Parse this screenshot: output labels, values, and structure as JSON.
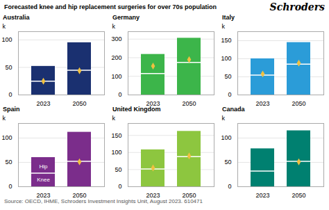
{
  "title": "Forecasted knee and hip replacement surgeries for over 70s population",
  "logo": "Schroders",
  "source": "Source: OECD, IHME, Schroders Investment Insights Unit, August 2023. 610471",
  "chart_data": [
    {
      "type": "bar",
      "title": "Australia",
      "ylabel": "k",
      "categories": [
        "2023",
        "2050"
      ],
      "series": [
        {
          "type": "bar",
          "color": "#1a3070",
          "values": [
            52,
            95
          ]
        },
        {
          "type": "divider",
          "color": "white",
          "values": [
            25,
            45
          ]
        },
        {
          "type": "scatter",
          "marker": "diamond",
          "color": "#f0c040",
          "values": [
            25,
            44
          ]
        }
      ],
      "ylim": [
        0,
        115
      ],
      "yticks": [
        0,
        50,
        100
      ],
      "grid": true
    },
    {
      "type": "bar",
      "title": "Germany",
      "ylabel": "k",
      "categories": [
        "2023",
        "2050"
      ],
      "series": [
        {
          "type": "bar",
          "color": "#3cb54a",
          "values": [
            218,
            305
          ]
        },
        {
          "type": "divider",
          "color": "white",
          "values": [
            115,
            175
          ]
        },
        {
          "type": "scatter",
          "marker": "diamond",
          "color": "#f0c040",
          "values": [
            155,
            190
          ]
        }
      ],
      "ylim": [
        0,
        340
      ],
      "yticks": [
        0,
        100,
        200,
        300
      ],
      "grid": true
    },
    {
      "type": "bar",
      "title": "Italy",
      "ylabel": "k",
      "categories": [
        "2023",
        "2050"
      ],
      "series": [
        {
          "type": "bar",
          "color": "#2b9cd8",
          "values": [
            100,
            145
          ]
        },
        {
          "type": "divider",
          "color": "white",
          "values": [
            55,
            85
          ]
        },
        {
          "type": "scatter",
          "marker": "diamond",
          "color": "#f0c040",
          "values": [
            58,
            88
          ]
        }
      ],
      "ylim": [
        0,
        175
      ],
      "yticks": [
        0,
        50,
        100,
        150
      ],
      "grid": true
    },
    {
      "type": "bar",
      "title": "Spain",
      "ylabel": "k",
      "categories": [
        "2023",
        "2050"
      ],
      "series": [
        {
          "type": "bar",
          "color": "#7b2d8b",
          "values": [
            60,
            112
          ]
        },
        {
          "type": "divider",
          "color": "white",
          "values": [
            28,
            52
          ]
        },
        {
          "type": "scatter",
          "marker": "diamond",
          "color": "#f0c040",
          "values": [
            null,
            51
          ]
        }
      ],
      "annotations": [
        {
          "text": "Hip",
          "x": "2023",
          "y": 42
        },
        {
          "text": "Knee",
          "x": "2023",
          "y": 14
        }
      ],
      "ylim": [
        0,
        130
      ],
      "yticks": [
        0,
        50,
        100
      ],
      "grid": true
    },
    {
      "type": "bar",
      "title": "United Kingdom",
      "ylabel": "k",
      "categories": [
        "2023",
        "2050"
      ],
      "series": [
        {
          "type": "bar",
          "color": "#8dc63f",
          "values": [
            108,
            162
          ]
        },
        {
          "type": "divider",
          "color": "white",
          "values": [
            52,
            88
          ]
        },
        {
          "type": "scatter",
          "marker": "diamond",
          "color": "#f0c040",
          "values": [
            55,
            90
          ]
        }
      ],
      "ylim": [
        0,
        185
      ],
      "yticks": [
        0,
        50,
        100,
        150
      ],
      "grid": true
    },
    {
      "type": "bar",
      "title": "Canada",
      "ylabel": "k",
      "categories": [
        "2023",
        "2050"
      ],
      "series": [
        {
          "type": "bar",
          "color": "#008070",
          "values": [
            78,
            115
          ]
        },
        {
          "type": "divider",
          "color": "white",
          "values": [
            32,
            52
          ]
        },
        {
          "type": "scatter",
          "marker": "diamond",
          "color": "#f0c040",
          "values": [
            null,
            51
          ]
        }
      ],
      "ylim": [
        0,
        130
      ],
      "yticks": [
        0,
        50,
        100
      ],
      "grid": true
    }
  ]
}
